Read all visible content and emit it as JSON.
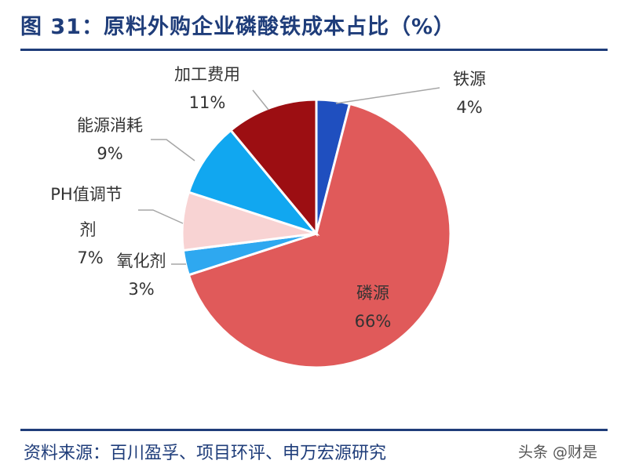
{
  "title": "图 31：原料外购企业磷酸铁成本占比（%）",
  "source": "资料来源：百川盈孚、项目环评、申万宏源研究",
  "watermark": "头条 @财是",
  "chart_data": {
    "type": "pie",
    "title": "图 31：原料外购企业磷酸铁成本占比（%）",
    "slices": [
      {
        "name": "铁源",
        "value": 4,
        "label": "4%",
        "color": "#1f4fbf"
      },
      {
        "name": "磷源",
        "value": 66,
        "label": "66%",
        "color": "#e05a5a"
      },
      {
        "name": "氧化剂",
        "value": 3,
        "label": "3%",
        "color": "#2ea8f0"
      },
      {
        "name": "PH值调节剂",
        "value": 7,
        "label": "7%",
        "color": "#f8d3d3"
      },
      {
        "name": "能源消耗",
        "value": 9,
        "label": "9%",
        "color": "#11a7f0"
      },
      {
        "name": "加工费用",
        "value": 11,
        "label": "11%",
        "color": "#9c0e12"
      }
    ],
    "start_angle_deg": 0,
    "direction": "clockwise"
  }
}
